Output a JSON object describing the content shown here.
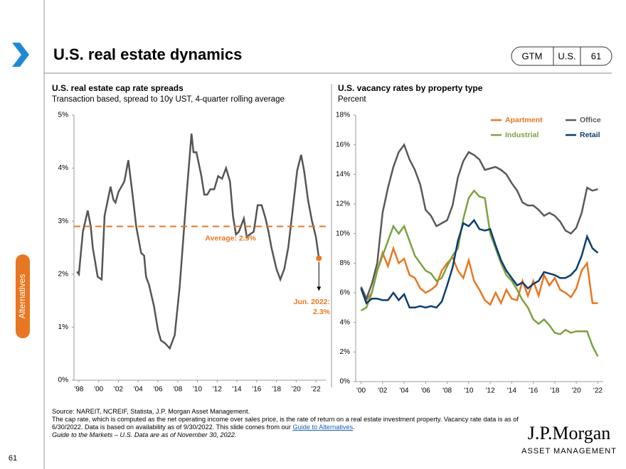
{
  "header": {
    "title": "U.S. real estate dynamics",
    "badge": [
      "GTM",
      "U.S.",
      "61"
    ]
  },
  "side_tab": "Alternatives",
  "chart_data": [
    {
      "type": "line",
      "title": "U.S. real estate cap rate spreads",
      "subtitle": "Transaction based, spread to 10y UST, 4-quarter rolling average",
      "x": [
        1997.8,
        1998.0,
        1998.4,
        1998.9,
        1999.2,
        1999.4,
        1999.9,
        2000.3,
        2000.6,
        2001.2,
        2001.5,
        2001.7,
        2002.0,
        2002.6,
        2003.0,
        2003.4,
        2003.8,
        2004.3,
        2004.6,
        2004.8,
        2005.1,
        2005.6,
        2006.0,
        2006.3,
        2006.7,
        2007.2,
        2007.7,
        2008.2,
        2008.7,
        2008.9,
        2009.4,
        2009.6,
        2009.9,
        2010.4,
        2010.7,
        2011.0,
        2011.3,
        2011.7,
        2012.1,
        2012.5,
        2012.9,
        2013.3,
        2013.6,
        2013.9,
        2014.2,
        2014.7,
        2015.0,
        2015.3,
        2015.7,
        2016.1,
        2016.5,
        2016.9,
        2017.2,
        2017.5,
        2018.0,
        2018.4,
        2018.8,
        2019.2,
        2019.7,
        2020.1,
        2020.5,
        2020.8,
        2021.2,
        2021.6,
        2022.0,
        2022.3
      ],
      "values": [
        2.05,
        2.0,
        2.8,
        3.2,
        2.9,
        2.5,
        1.95,
        1.9,
        3.1,
        3.65,
        3.4,
        3.35,
        3.55,
        3.75,
        4.15,
        3.55,
        2.9,
        2.4,
        2.35,
        1.95,
        1.8,
        1.4,
        0.95,
        0.75,
        0.7,
        0.6,
        0.85,
        1.75,
        3.0,
        3.5,
        4.65,
        4.3,
        4.3,
        3.85,
        3.5,
        3.5,
        3.6,
        3.6,
        3.85,
        3.8,
        4.0,
        3.75,
        3.1,
        2.75,
        2.8,
        3.05,
        2.7,
        2.75,
        2.8,
        3.3,
        3.3,
        3.05,
        2.8,
        2.5,
        2.1,
        1.9,
        2.1,
        2.5,
        3.3,
        3.95,
        4.25,
        3.95,
        3.4,
        3.0,
        2.7,
        2.3
      ],
      "color": "#555555",
      "average": 2.9,
      "average_label": "Average: 2.9%",
      "average_color": "#e87722",
      "annotation": [
        "Jun. 2022:",
        "2.3%"
      ],
      "xlim": [
        1997.5,
        2023
      ],
      "ylim": [
        0,
        5
      ],
      "xticks": [
        {
          "value": 1998,
          "label": "'98"
        },
        {
          "value": 2000,
          "label": "'00"
        },
        {
          "value": 2002,
          "label": "'02"
        },
        {
          "value": 2004,
          "label": "'04"
        },
        {
          "value": 2006,
          "label": "'06"
        },
        {
          "value": 2008,
          "label": "'08"
        },
        {
          "value": 2010,
          "label": "'10"
        },
        {
          "value": 2012,
          "label": "'12"
        },
        {
          "value": 2014,
          "label": "'14"
        },
        {
          "value": 2016,
          "label": "'16"
        },
        {
          "value": 2018,
          "label": "'18"
        },
        {
          "value": 2020,
          "label": "'20"
        },
        {
          "value": 2022,
          "label": "'22"
        }
      ],
      "yticks": [
        {
          "value": 0,
          "label": "0%"
        },
        {
          "value": 1,
          "label": "1%"
        },
        {
          "value": 2,
          "label": "2%"
        },
        {
          "value": 3,
          "label": "3%"
        },
        {
          "value": 4,
          "label": "4%"
        },
        {
          "value": 5,
          "label": "5%"
        }
      ],
      "grid": false
    },
    {
      "type": "line",
      "title": "U.S. vacancy rates by property type",
      "subtitle": "Percent",
      "x": [
        2000,
        2000.5,
        2001,
        2001.5,
        2002,
        2002.5,
        2003,
        2003.5,
        2004,
        2004.5,
        2005,
        2005.5,
        2006,
        2006.5,
        2007,
        2007.5,
        2008,
        2008.5,
        2009,
        2009.5,
        2010,
        2010.5,
        2011,
        2011.5,
        2012,
        2012.5,
        2013,
        2013.5,
        2014,
        2014.5,
        2015,
        2015.5,
        2016,
        2016.5,
        2017,
        2017.5,
        2018,
        2018.5,
        2019,
        2019.5,
        2020,
        2020.5,
        2021,
        2021.5,
        2022
      ],
      "series": [
        {
          "name": "Apartment",
          "color": "#e87722",
          "values": [
            6.3,
            5.5,
            6.0,
            7.5,
            8.7,
            7.8,
            9.0,
            8.0,
            8.3,
            7.2,
            7.0,
            6.3,
            6.0,
            6.2,
            6.5,
            7.5,
            8.0,
            8.4,
            7.5,
            7.0,
            8.2,
            6.8,
            6.2,
            5.5,
            5.2,
            6.0,
            5.3,
            6.2,
            5.6,
            5.5,
            6.8,
            5.8,
            6.8,
            5.8,
            7.2,
            6.5,
            7.0,
            6.2,
            6.0,
            5.7,
            6.3,
            7.5,
            8.0,
            5.3,
            5.3
          ]
        },
        {
          "name": "Office",
          "color": "#595959",
          "values": [
            6.4,
            5.6,
            6.6,
            8.0,
            11.4,
            13.1,
            14.5,
            15.5,
            16.0,
            15.0,
            14.3,
            13.3,
            11.6,
            11.2,
            10.5,
            10.7,
            10.9,
            11.9,
            13.8,
            14.9,
            15.5,
            15.3,
            15.0,
            14.3,
            14.4,
            14.5,
            14.3,
            14.0,
            13.4,
            12.9,
            12.1,
            11.9,
            11.9,
            11.6,
            11.2,
            11.4,
            11.2,
            10.8,
            10.2,
            10.0,
            10.4,
            11.4,
            13.1,
            12.9,
            13.0
          ]
        },
        {
          "name": "Industrial",
          "color": "#7ba23f",
          "values": [
            4.8,
            5.0,
            6.0,
            7.5,
            8.5,
            9.5,
            10.5,
            10.0,
            10.5,
            9.5,
            8.5,
            8.0,
            7.5,
            7.3,
            6.8,
            7.0,
            7.8,
            8.5,
            9.0,
            11.0,
            12.4,
            12.9,
            12.5,
            12.4,
            10.0,
            9.0,
            8.0,
            7.2,
            6.8,
            6.2,
            5.5,
            5.0,
            4.2,
            3.9,
            4.2,
            3.8,
            3.3,
            3.2,
            3.5,
            3.3,
            3.4,
            3.4,
            3.4,
            2.4,
            1.7
          ]
        },
        {
          "name": "Retail",
          "color": "#0b3e6f",
          "values": [
            6.3,
            5.3,
            5.6,
            5.6,
            5.5,
            5.5,
            6.0,
            5.5,
            5.9,
            5.0,
            5.0,
            5.1,
            5.0,
            5.1,
            5.0,
            5.4,
            6.5,
            7.7,
            9.5,
            10.7,
            10.5,
            10.9,
            10.3,
            10.2,
            10.3,
            9.2,
            8.2,
            7.5,
            7.0,
            6.5,
            6.7,
            6.3,
            6.6,
            6.8,
            7.4,
            7.3,
            7.2,
            7.0,
            7.0,
            7.2,
            7.6,
            8.5,
            9.8,
            9.0,
            8.7
          ]
        }
      ],
      "legend": "top-right",
      "xlim": [
        1999.5,
        2022.5
      ],
      "ylim": [
        0,
        18
      ],
      "xticks": [
        {
          "value": 2000,
          "label": "'00"
        },
        {
          "value": 2002,
          "label": "'02"
        },
        {
          "value": 2004,
          "label": "'04"
        },
        {
          "value": 2006,
          "label": "'06"
        },
        {
          "value": 2008,
          "label": "'08"
        },
        {
          "value": 2010,
          "label": "'10"
        },
        {
          "value": 2012,
          "label": "'12"
        },
        {
          "value": 2014,
          "label": "'14"
        },
        {
          "value": 2016,
          "label": "'16"
        },
        {
          "value": 2018,
          "label": "'18"
        },
        {
          "value": 2020,
          "label": "'20"
        },
        {
          "value": 2022,
          "label": "'22"
        }
      ],
      "yticks": [
        {
          "value": 0,
          "label": "0%"
        },
        {
          "value": 2,
          "label": "2%"
        },
        {
          "value": 4,
          "label": "4%"
        },
        {
          "value": 6,
          "label": "6%"
        },
        {
          "value": 8,
          "label": "8%"
        },
        {
          "value": 10,
          "label": "10%"
        },
        {
          "value": 12,
          "label": "12%"
        },
        {
          "value": 14,
          "label": "14%"
        },
        {
          "value": 16,
          "label": "16%"
        },
        {
          "value": 18,
          "label": "18%"
        }
      ],
      "grid": false
    }
  ],
  "footer": {
    "source": "Source: NAREIT, NCREIF, Statista, J.P. Morgan Asset Management.",
    "note": "The cap rate, which is computed as the net operating income over sales price, is the rate of return on a real estate investment property. Vacancy rate data is as of 6/30/2022. Data is based on availability as of 9/30/2022. This slide comes from our ",
    "link": "Guide to Alternatives",
    "note_end": ".",
    "guide": "Guide to the Markets – U.S. Data are as of November 30, 2022."
  },
  "logo": {
    "name": "J.P.Morgan",
    "sub": "ASSET MANAGEMENT"
  },
  "page_number": "61"
}
